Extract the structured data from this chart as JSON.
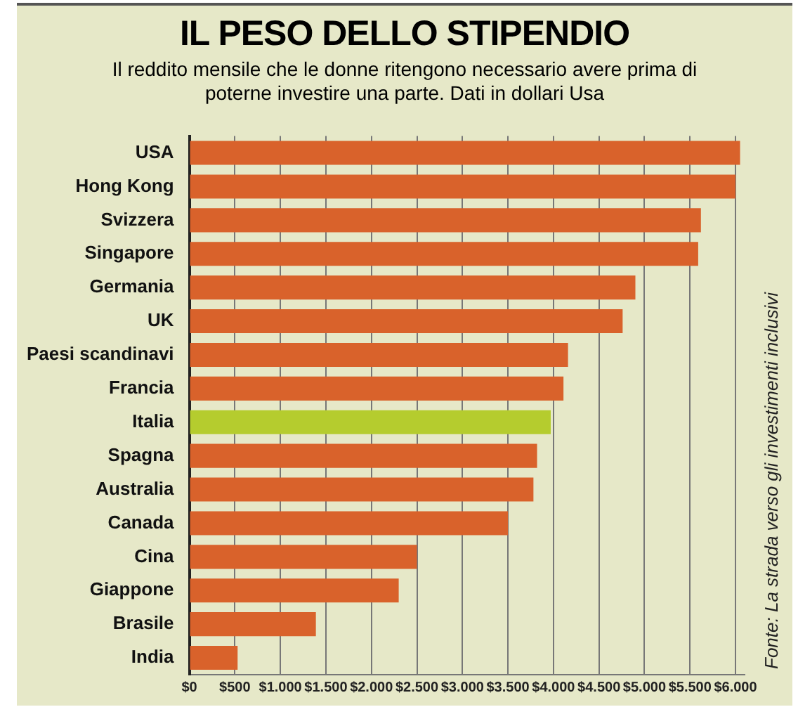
{
  "chart_data": {
    "type": "bar",
    "orientation": "horizontal",
    "title": "IL PESO DELLO STIPENDIO",
    "subtitle": "Il reddito mensile che le donne ritengono necessario avere prima di poterne investire una parte. Dati in dollari Usa",
    "categories": [
      "USA",
      "Hong Kong",
      "Svizzera",
      "Singapore",
      "Germania",
      "UK",
      "Paesi scandinavi",
      "Francia",
      "Italia",
      "Spagna",
      "Australia",
      "Canada",
      "Cina",
      "Giappone",
      "Brasile",
      "India"
    ],
    "values": [
      6050,
      6000,
      5620,
      5590,
      4900,
      4760,
      4160,
      4110,
      3970,
      3820,
      3780,
      3500,
      2500,
      2300,
      1390,
      530
    ],
    "colors": [
      "#d9622b",
      "#d9622b",
      "#d9622b",
      "#d9622b",
      "#d9622b",
      "#d9622b",
      "#d9622b",
      "#d9622b",
      "#b5cc2e",
      "#d9622b",
      "#d9622b",
      "#d9622b",
      "#d9622b",
      "#d9622b",
      "#d9622b",
      "#d9622b"
    ],
    "xlim": [
      0,
      6100
    ],
    "xticks": [
      {
        "value": 0,
        "label": "$0"
      },
      {
        "value": 500,
        "label": "$500"
      },
      {
        "value": 1000,
        "label": "$1.000"
      },
      {
        "value": 1500,
        "label": "$1.500"
      },
      {
        "value": 2000,
        "label": "$2.000"
      },
      {
        "value": 2500,
        "label": "$2.500"
      },
      {
        "value": 3000,
        "label": "$3.000"
      },
      {
        "value": 3500,
        "label": "$3.500"
      },
      {
        "value": 4000,
        "label": "$4.000"
      },
      {
        "value": 4500,
        "label": "$4.500"
      },
      {
        "value": 5000,
        "label": "$5.000"
      },
      {
        "value": 5500,
        "label": "$5.500"
      },
      {
        "value": 6000,
        "label": "$6.000"
      }
    ],
    "grid": "x",
    "annotations": [
      "Fonte: La strada verso gli investimenti inclusivi"
    ]
  }
}
